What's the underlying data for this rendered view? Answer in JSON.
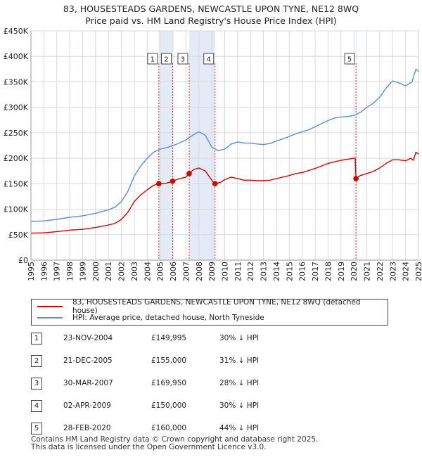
{
  "title": "83, HOUSESTEADS GARDENS, NEWCASTLE UPON TYNE, NE12 8WQ",
  "subtitle": "Price paid vs. HM Land Registry's House Price Index (HPI)",
  "colors": {
    "property": "#cc0000",
    "hpi": "#5b8fd0",
    "band": "#dbe4f3",
    "grid": "#d9d9d9"
  },
  "chart_data": {
    "type": "line",
    "xlim": [
      1995,
      2025
    ],
    "ylim": [
      0,
      450000
    ],
    "x_ticks": [
      "1995",
      "1996",
      "1997",
      "1998",
      "1999",
      "2000",
      "2001",
      "2002",
      "2003",
      "2004",
      "2005",
      "2006",
      "2007",
      "2008",
      "2009",
      "2010",
      "2011",
      "2012",
      "2013",
      "2014",
      "2015",
      "2016",
      "2017",
      "2018",
      "2019",
      "2020",
      "2021",
      "2022",
      "2023",
      "2024",
      "2025"
    ],
    "y_ticks": [
      {
        "value": 0,
        "label": "£0"
      },
      {
        "value": 50000,
        "label": "£50K"
      },
      {
        "value": 100000,
        "label": "£100K"
      },
      {
        "value": 150000,
        "label": "£150K"
      },
      {
        "value": 200000,
        "label": "£200K"
      },
      {
        "value": 250000,
        "label": "£250K"
      },
      {
        "value": 300000,
        "label": "£300K"
      },
      {
        "value": 350000,
        "label": "£350K"
      },
      {
        "value": 400000,
        "label": "£400K"
      },
      {
        "value": 450000,
        "label": "£450K"
      }
    ],
    "grid": true,
    "series": [
      {
        "name": "83, HOUSESTEADS GARDENS, NEWCASTLE UPON TYNE, NE12 8WQ (detached house)",
        "color": "#cc0000",
        "points": [
          [
            1995.0,
            53000
          ],
          [
            1996.0,
            53500
          ],
          [
            1997.0,
            56000
          ],
          [
            1998.0,
            59000
          ],
          [
            1999.0,
            60500
          ],
          [
            2000.0,
            64000
          ],
          [
            2001.0,
            69000
          ],
          [
            2001.5,
            72000
          ],
          [
            2002.0,
            80000
          ],
          [
            2002.5,
            94000
          ],
          [
            2003.0,
            115000
          ],
          [
            2003.5,
            128000
          ],
          [
            2004.0,
            138000
          ],
          [
            2004.5,
            147000
          ],
          [
            2004.9,
            149995
          ],
          [
            2005.5,
            151000
          ],
          [
            2005.97,
            155000
          ],
          [
            2006.5,
            160000
          ],
          [
            2007.0,
            163000
          ],
          [
            2007.25,
            169950
          ],
          [
            2007.6,
            178000
          ],
          [
            2008.0,
            181000
          ],
          [
            2008.5,
            175000
          ],
          [
            2009.0,
            157000
          ],
          [
            2009.25,
            150000
          ],
          [
            2009.7,
            153000
          ],
          [
            2010.0,
            158000
          ],
          [
            2010.5,
            163000
          ],
          [
            2011.0,
            160000
          ],
          [
            2011.5,
            157000
          ],
          [
            2012.0,
            157000
          ],
          [
            2012.5,
            156000
          ],
          [
            2013.0,
            156000
          ],
          [
            2013.5,
            157000
          ],
          [
            2014.0,
            160000
          ],
          [
            2014.5,
            163000
          ],
          [
            2015.0,
            166000
          ],
          [
            2015.5,
            170000
          ],
          [
            2016.0,
            172000
          ],
          [
            2016.5,
            176000
          ],
          [
            2017.0,
            180000
          ],
          [
            2017.5,
            185000
          ],
          [
            2018.0,
            190000
          ],
          [
            2018.5,
            193000
          ],
          [
            2019.0,
            196000
          ],
          [
            2019.5,
            198000
          ],
          [
            2020.0,
            200000
          ],
          [
            2020.1,
            200000
          ],
          [
            2020.16,
            160000
          ],
          [
            2020.5,
            166000
          ],
          [
            2021.0,
            170000
          ],
          [
            2021.5,
            174000
          ],
          [
            2022.0,
            181000
          ],
          [
            2022.5,
            190000
          ],
          [
            2023.0,
            197000
          ],
          [
            2023.5,
            197000
          ],
          [
            2024.0,
            195000
          ],
          [
            2024.4,
            200000
          ],
          [
            2024.6,
            196000
          ],
          [
            2024.8,
            212000
          ],
          [
            2025.0,
            208000
          ]
        ]
      },
      {
        "name": "HPI: Average price, detached house, North Tyneside",
        "color": "#5b8fd0",
        "points": [
          [
            1995.0,
            76000
          ],
          [
            1996.0,
            77000
          ],
          [
            1997.0,
            80000
          ],
          [
            1998.0,
            84000
          ],
          [
            1999.0,
            87000
          ],
          [
            2000.0,
            92000
          ],
          [
            2001.0,
            99000
          ],
          [
            2001.5,
            104000
          ],
          [
            2002.0,
            115000
          ],
          [
            2002.5,
            135000
          ],
          [
            2003.0,
            165000
          ],
          [
            2003.5,
            185000
          ],
          [
            2004.0,
            200000
          ],
          [
            2004.5,
            212000
          ],
          [
            2005.0,
            218000
          ],
          [
            2005.5,
            221000
          ],
          [
            2006.0,
            225000
          ],
          [
            2006.5,
            230000
          ],
          [
            2007.0,
            236000
          ],
          [
            2007.5,
            245000
          ],
          [
            2008.0,
            252000
          ],
          [
            2008.5,
            245000
          ],
          [
            2009.0,
            222000
          ],
          [
            2009.5,
            215000
          ],
          [
            2010.0,
            218000
          ],
          [
            2010.5,
            228000
          ],
          [
            2011.0,
            232000
          ],
          [
            2011.5,
            230000
          ],
          [
            2012.0,
            230000
          ],
          [
            2012.5,
            228000
          ],
          [
            2013.0,
            227000
          ],
          [
            2013.5,
            229000
          ],
          [
            2014.0,
            234000
          ],
          [
            2014.5,
            238000
          ],
          [
            2015.0,
            243000
          ],
          [
            2015.5,
            248000
          ],
          [
            2016.0,
            252000
          ],
          [
            2016.5,
            256000
          ],
          [
            2017.0,
            262000
          ],
          [
            2017.5,
            268000
          ],
          [
            2018.0,
            274000
          ],
          [
            2018.5,
            279000
          ],
          [
            2019.0,
            281000
          ],
          [
            2019.5,
            282000
          ],
          [
            2020.0,
            284000
          ],
          [
            2020.5,
            290000
          ],
          [
            2021.0,
            300000
          ],
          [
            2021.5,
            308000
          ],
          [
            2022.0,
            320000
          ],
          [
            2022.5,
            338000
          ],
          [
            2023.0,
            352000
          ],
          [
            2023.5,
            348000
          ],
          [
            2024.0,
            342000
          ],
          [
            2024.5,
            350000
          ],
          [
            2024.8,
            375000
          ],
          [
            2025.0,
            370000
          ]
        ]
      }
    ],
    "sales": [
      {
        "label": "1",
        "x": 2004.9,
        "price": 149995
      },
      {
        "label": "2",
        "x": 2005.97,
        "price": 155000
      },
      {
        "label": "3",
        "x": 2007.25,
        "price": 169950
      },
      {
        "label": "4",
        "x": 2009.25,
        "price": 150000
      },
      {
        "label": "5",
        "x": 2020.16,
        "price": 160000
      }
    ],
    "shaded_ranges": [
      [
        2004.9,
        2005.97
      ],
      [
        2007.25,
        2009.25
      ],
      [
        2020.16,
        2020.16
      ],
      [
        2024.95,
        2025.0
      ]
    ]
  },
  "legend": {
    "property_label": "83, HOUSESTEADS GARDENS, NEWCASTLE UPON TYNE, NE12 8WQ (detached house)",
    "hpi_label": "HPI: Average price, detached house, North Tyneside"
  },
  "transactions": [
    {
      "num": "1",
      "date": "23-NOV-2004",
      "price": "£149,995",
      "hpi": "30% ↓ HPI"
    },
    {
      "num": "2",
      "date": "21-DEC-2005",
      "price": "£155,000",
      "hpi": "31% ↓ HPI"
    },
    {
      "num": "3",
      "date": "30-MAR-2007",
      "price": "£169,950",
      "hpi": "28% ↓ HPI"
    },
    {
      "num": "4",
      "date": "02-APR-2009",
      "price": "£150,000",
      "hpi": "30% ↓ HPI"
    },
    {
      "num": "5",
      "date": "28-FEB-2020",
      "price": "£160,000",
      "hpi": "44% ↓ HPI"
    }
  ],
  "footer": {
    "line1": "Contains HM Land Registry data © Crown copyright and database right 2025.",
    "line2": "This data is licensed under the Open Government Licence v3.0."
  }
}
